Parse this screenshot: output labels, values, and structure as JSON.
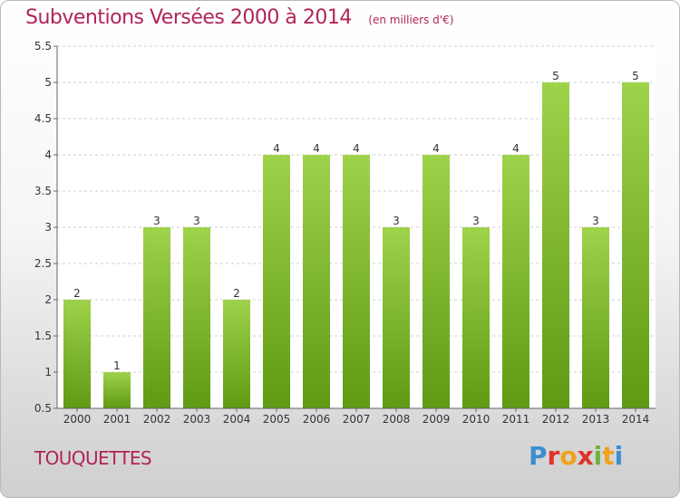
{
  "header": {
    "title": "Subventions Versées 2000 à 2014",
    "unit_note": "(en milliers d'€)"
  },
  "footer": {
    "location": "TOUQUETTES",
    "logo_letters": [
      "P",
      "r",
      "o",
      "x",
      "i",
      "t",
      "i"
    ]
  },
  "colors": {
    "title": "#b0245a",
    "bar_top": "#9fd24b",
    "bar_bottom": "#5e9a12",
    "logo": [
      "#3a8fd1",
      "#e0332a",
      "#f0a21b",
      "#e0332a",
      "#6cb33f",
      "#f0a21b",
      "#3a8fd1"
    ]
  },
  "chart_data": {
    "type": "bar",
    "title": "Subventions Versées 2000 à 2014",
    "xlabel": "",
    "ylabel": "",
    "categories": [
      "2000",
      "2001",
      "2002",
      "2003",
      "2004",
      "2005",
      "2006",
      "2007",
      "2008",
      "2009",
      "2010",
      "2011",
      "2012",
      "2013",
      "2014"
    ],
    "values": [
      2,
      1,
      3,
      3,
      2,
      4,
      4,
      4,
      3,
      4,
      3,
      4,
      5,
      3,
      5
    ],
    "data_labels": [
      "2",
      "1",
      "3",
      "3",
      "2",
      "4",
      "4",
      "4",
      "3",
      "4",
      "3",
      "4",
      "5",
      "3",
      "5"
    ],
    "ylim": [
      0.5,
      5.5
    ],
    "yticks": [
      0.5,
      1,
      1.5,
      2,
      2.5,
      3,
      3.5,
      4,
      4.5,
      5,
      5.5
    ],
    "ytick_labels": [
      "0.5",
      "1",
      "1.5",
      "2",
      "2.5",
      "3",
      "3.5",
      "4",
      "4.5",
      "5",
      "5.5"
    ],
    "grid": true,
    "legend": "none"
  }
}
